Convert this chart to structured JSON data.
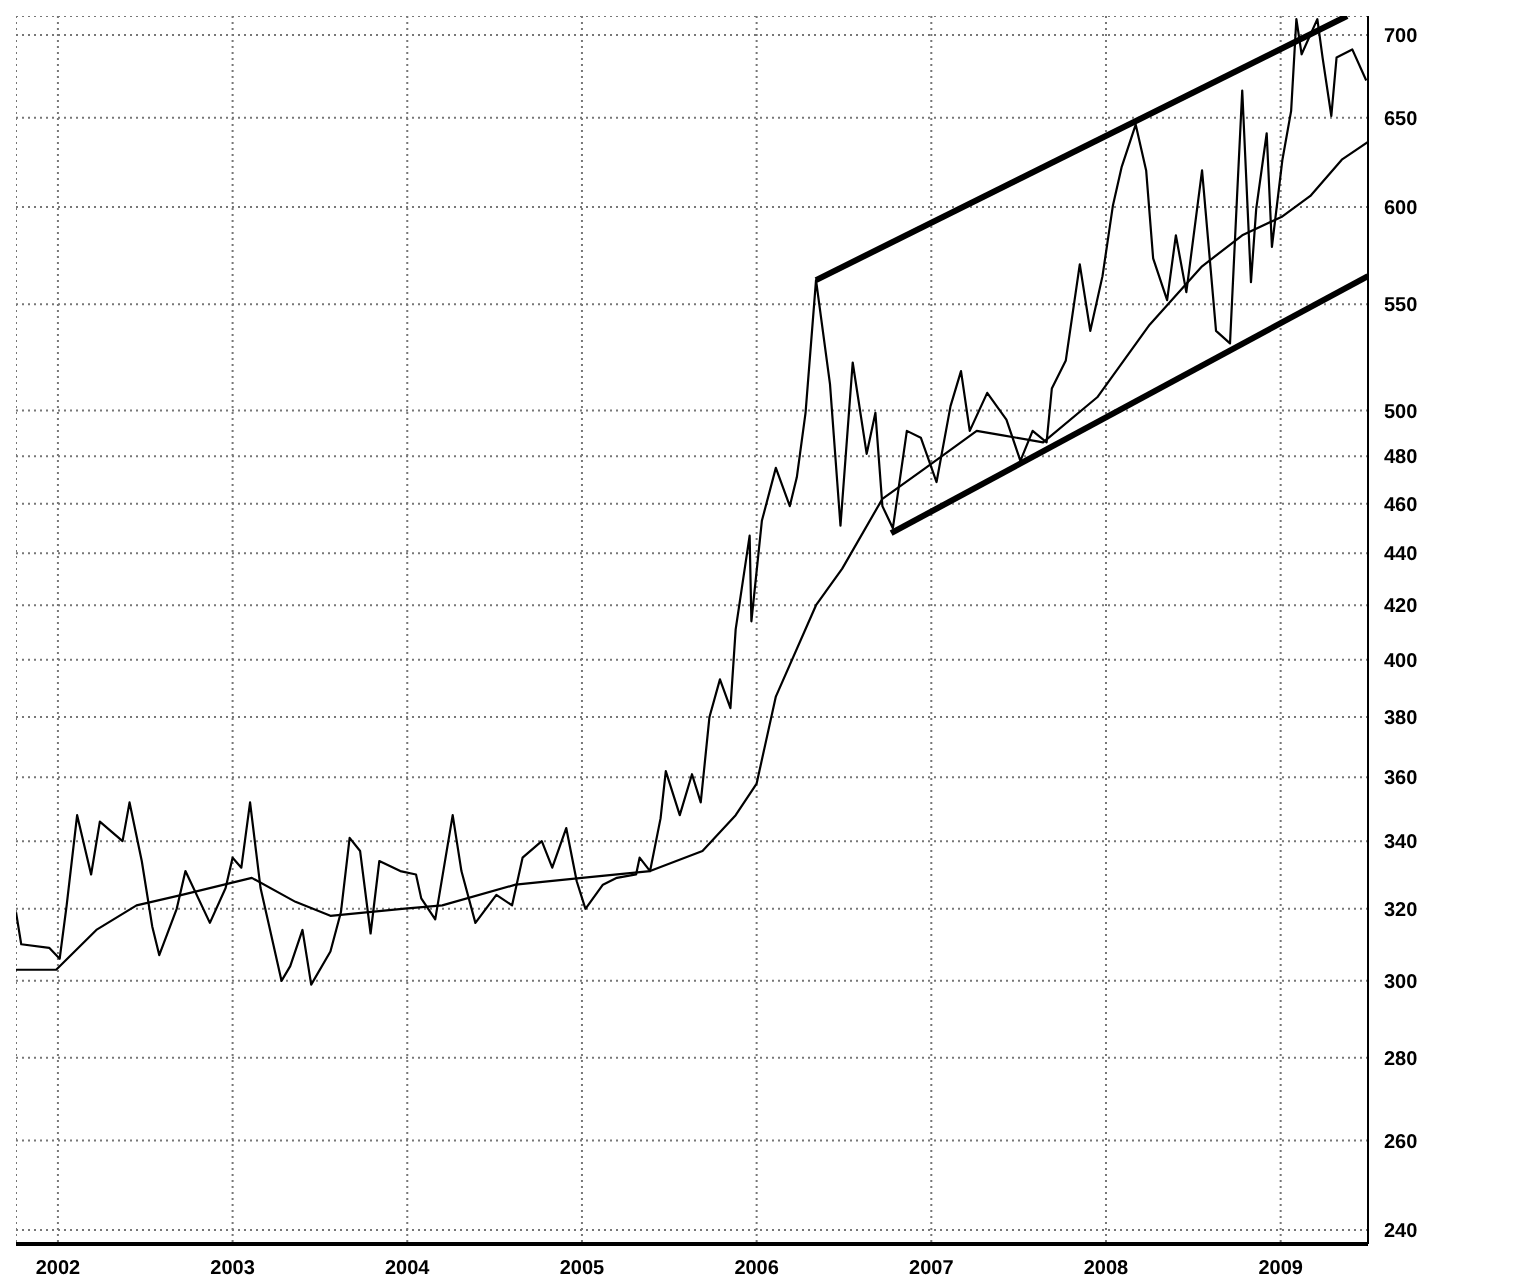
{
  "chart_data": {
    "type": "line",
    "xlim": [
      2001.76,
      2009.5
    ],
    "xticks": [
      2002,
      2003,
      2004,
      2005,
      2006,
      2007,
      2008,
      2009
    ],
    "ylim": [
      237,
      712
    ],
    "yticks": [
      240,
      260,
      280,
      300,
      320,
      340,
      360,
      380,
      400,
      420,
      440,
      460,
      480,
      500,
      550,
      600,
      650,
      700
    ],
    "log": "y",
    "grid": true,
    "marker": "none",
    "series": [
      {
        "color": "#000000",
        "x": [
          2001.76,
          2001.79,
          2001.95,
          2002.01,
          2002.05,
          2002.11,
          2002.19,
          2002.24,
          2002.37,
          2002.41,
          2002.48,
          2002.54,
          2002.58,
          2002.68,
          2002.73,
          2002.87,
          2002.96,
          2003.0,
          2003.05,
          2003.1,
          2003.16,
          2003.21,
          2003.28,
          2003.33,
          2003.4,
          2003.45,
          2003.56,
          2003.62,
          2003.67,
          2003.73,
          2003.79,
          2003.84,
          2003.96,
          2004.05,
          2004.08,
          2004.16,
          2004.26,
          2004.31,
          2004.39,
          2004.51,
          2004.6,
          2004.66,
          2004.77,
          2004.83,
          2004.91,
          2004.97,
          2005.02,
          2005.12,
          2005.2,
          2005.31,
          2005.33,
          2005.39,
          2005.45,
          2005.48,
          2005.56,
          2005.63,
          2005.68,
          2005.73,
          2005.79,
          2005.85,
          2005.88,
          2005.96,
          2005.97,
          2006.03,
          2006.11,
          2006.19,
          2006.23,
          2006.28,
          2006.34,
          2006.42,
          2006.48,
          2006.55,
          2006.63,
          2006.68,
          2006.72,
          2006.78,
          2006.86,
          2006.94,
          2007.03,
          2007.11,
          2007.17,
          2007.22,
          2007.32,
          2007.43,
          2007.51,
          2007.58,
          2007.66,
          2007.69,
          2007.77,
          2007.85,
          2007.91,
          2007.98,
          2008.04,
          2008.09,
          2008.17,
          2008.23,
          2008.27,
          2008.35,
          2008.4,
          2008.46,
          2008.55,
          2008.63,
          2008.71,
          2008.75,
          2008.78,
          2008.83,
          2008.86,
          2008.92,
          2008.95,
          2009.01,
          2009.06,
          2009.09,
          2009.12,
          2009.21,
          2009.24,
          2009.29,
          2009.32,
          2009.41,
          2009.49
        ],
        "values": [
          319,
          310,
          309,
          306,
          321,
          348,
          330,
          346,
          340,
          352,
          334,
          315,
          307,
          320,
          331,
          316,
          326,
          335,
          332,
          352,
          326,
          315,
          300,
          304,
          314,
          299,
          308,
          319,
          341,
          337,
          313,
          334,
          331,
          330,
          323,
          317,
          348,
          331,
          316,
          324,
          321,
          335,
          340,
          332,
          344,
          328,
          320,
          327,
          329,
          330,
          335,
          331,
          347,
          362,
          348,
          361,
          352,
          380,
          393,
          383,
          411,
          447,
          414,
          453,
          475,
          459,
          471,
          499,
          562,
          512,
          451,
          522,
          481,
          499,
          459,
          450,
          491,
          488,
          469,
          502,
          518,
          491,
          508,
          496,
          478,
          491,
          486,
          510,
          523,
          570,
          537,
          564,
          601,
          622,
          646,
          620,
          573,
          552,
          585,
          556,
          620,
          537,
          531,
          605,
          666,
          561,
          599,
          641,
          579,
          626,
          654,
          710,
          688,
          710,
          686,
          651,
          686,
          691,
          672
        ]
      },
      {
        "color": "#000000",
        "x": [
          2001.76,
          2001.99,
          2002.22,
          2002.45,
          2002.71,
          2003.11,
          2003.36,
          2003.56,
          2003.97,
          2004.2,
          2004.62,
          2005.0,
          2005.39,
          2005.69,
          2005.88,
          2006.0,
          2006.11,
          2006.34,
          2006.49,
          2006.72,
          2006.95,
          2007.26,
          2007.41,
          2007.64,
          2007.95,
          2008.25,
          2008.55,
          2008.78,
          2009.01,
          2009.17,
          2009.35,
          2009.5
        ],
        "values": [
          303,
          303,
          314,
          321,
          324,
          329,
          322,
          318,
          320,
          321,
          327,
          329,
          331,
          337,
          348,
          358,
          387,
          420,
          434,
          462,
          474,
          491,
          489,
          486,
          506,
          540,
          569,
          585,
          595,
          606,
          626,
          636
        ]
      },
      {
        "color": "#000000",
        "x": [
          2006.34,
          2009.38
        ],
        "values": [
          562,
          712
        ]
      },
      {
        "color": "#000000",
        "x": [
          2006.77,
          2009.5
        ],
        "values": [
          448,
          564
        ]
      }
    ]
  }
}
